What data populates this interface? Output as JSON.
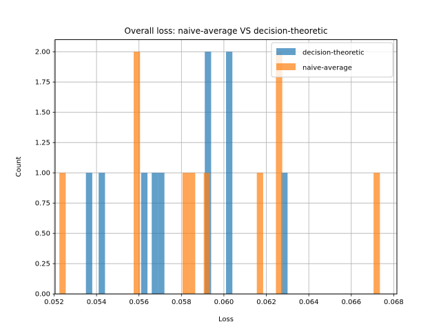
{
  "chart_data": {
    "type": "bar",
    "title": "Overall loss: naive-average VS decision-theoretic",
    "xlabel": "Loss",
    "ylabel": "Count",
    "xlim": [
      0.05205,
      0.06815
    ],
    "ylim": [
      0.0,
      2.1
    ],
    "grid": true,
    "legend_position": "top-right",
    "bin_width": 0.0003,
    "x_ticks": [
      "0.052",
      "0.054",
      "0.056",
      "0.058",
      "0.060",
      "0.062",
      "0.064",
      "0.066",
      "0.068"
    ],
    "x_tick_values": [
      0.052,
      0.054,
      0.056,
      0.058,
      0.06,
      0.062,
      0.064,
      0.066,
      0.068
    ],
    "y_ticks": [
      "0.00",
      "0.25",
      "0.50",
      "0.75",
      "1.00",
      "1.25",
      "1.50",
      "1.75",
      "2.00"
    ],
    "y_tick_values": [
      0.0,
      0.25,
      0.5,
      0.75,
      1.0,
      1.25,
      1.5,
      1.75,
      2.0
    ],
    "series": [
      {
        "name": "decision-theoretic",
        "color": "#1f77b4",
        "opacity": 0.7,
        "bins": [
          {
            "x": 0.0535,
            "count": 1
          },
          {
            "x": 0.0541,
            "count": 1
          },
          {
            "x": 0.0561,
            "count": 1
          },
          {
            "x": 0.0566,
            "count": 1
          },
          {
            "x": 0.0569,
            "count": 1
          },
          {
            "x": 0.0591,
            "count": 2
          },
          {
            "x": 0.0591,
            "count": 1,
            "skip": true
          },
          {
            "x": 0.0601,
            "count": 2
          },
          {
            "x": 0.0627,
            "count": 1
          }
        ]
      },
      {
        "name": "naive-average",
        "color": "#ff7f0e",
        "opacity": 0.7,
        "bins": [
          {
            "x": 0.05225,
            "count": 1
          },
          {
            "x": 0.05575,
            "count": 2
          },
          {
            "x": 0.05805,
            "count": 1
          },
          {
            "x": 0.05835,
            "count": 1
          },
          {
            "x": 0.05905,
            "count": 1
          },
          {
            "x": 0.06155,
            "count": 1
          },
          {
            "x": 0.06245,
            "count": 2
          },
          {
            "x": 0.06705,
            "count": 1
          }
        ]
      }
    ]
  }
}
